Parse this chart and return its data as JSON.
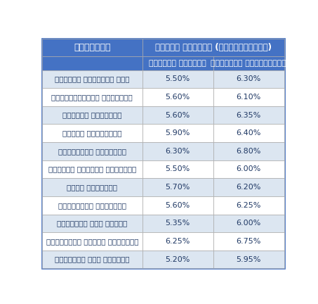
{
  "col1_header": "బ్యాంక్",
  "col2_header": "వడ్డీ రేట్లు (వార్తికంగా)",
  "col2a_header": "సాధారణ ప్రజలు",
  "col2b_header": "సీనియర్ సిటిజన్లు",
  "banks": [
    "స్టేట్ బ్యాంక్ ఆఫ్",
    "హెచ్డీఎఫ్సీ బ్యాంక్",
    "ఐడీబీఐ బ్యాంక్",
    "కోటక్ మహింద్రా",
    "ఆర్బీఎల్ బ్యాంక్",
    "పంజాబ్ నేషనల్ బ్యాంక్",
    "కనరా బ్యాంక్",
    "యాక్సిస్ బ్యాంక్",
    "బ్యాంక్ ఆఫ్ బరోడా",
    "ఐడీఎఫ్సీ ఫస్ట్ బ్యాంక్",
    "బ్యాంక్ ఆఫ్ ఇండియా"
  ],
  "general_rates": [
    "5.50%",
    "5.60%",
    "5.60%",
    "5.90%",
    "6.30%",
    "5.50%",
    "5.70%",
    "5.60%",
    "5.35%",
    "6.25%",
    "5.20%"
  ],
  "senior_rates": [
    "6.30%",
    "6.10%",
    "6.35%",
    "6.40%",
    "6.80%",
    "6.00%",
    "6.20%",
    "6.25%",
    "6.00%",
    "6.75%",
    "5.95%"
  ],
  "header_bg": "#4472C4",
  "header_text": "#FFFFFF",
  "row_bg_even": "#FFFFFF",
  "row_bg_odd": "#DCE6F1",
  "row_text": "#1F3864",
  "border_color": "#AAAAAA",
  "outer_border": "#4472C4"
}
